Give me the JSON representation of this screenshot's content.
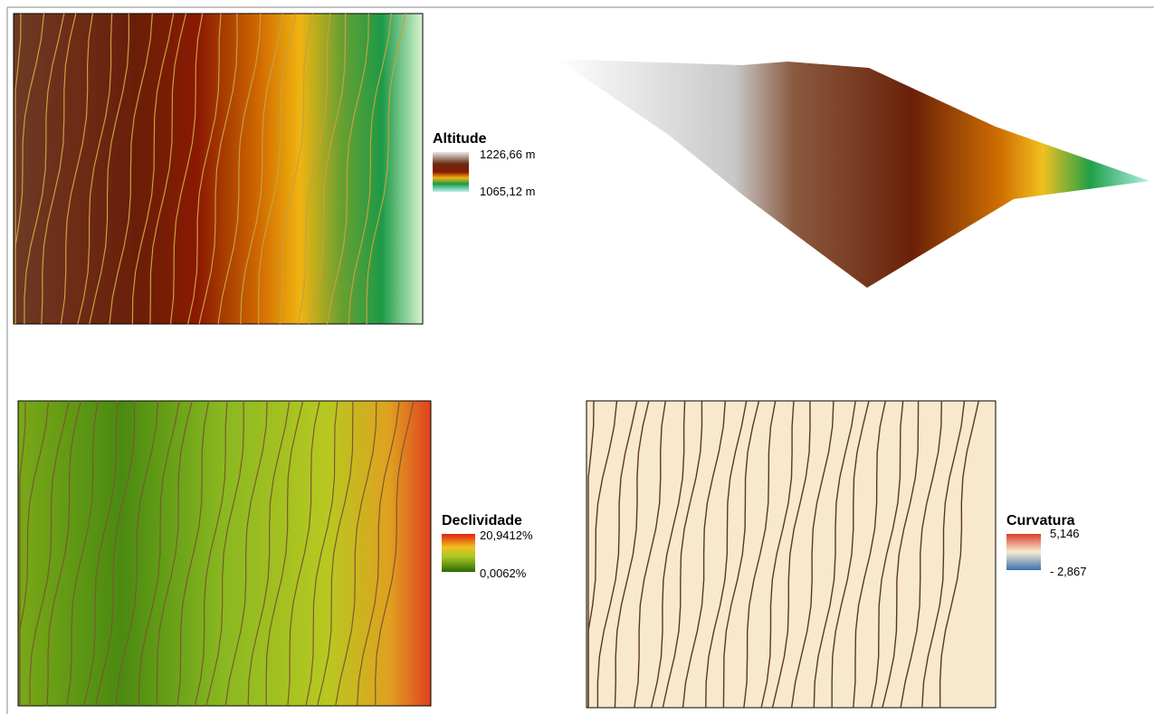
{
  "panels": [
    {
      "legend_title": "Altitude",
      "max_label": "1226,66 m",
      "min_label": "1065,12 m"
    },
    {
      "legend_title": "Declividade",
      "max_label": "20,9412%",
      "min_label": "0,0062%"
    },
    {
      "legend_title": "Curvatura",
      "max_label": "5,146",
      "min_label": "- 2,867"
    }
  ]
}
